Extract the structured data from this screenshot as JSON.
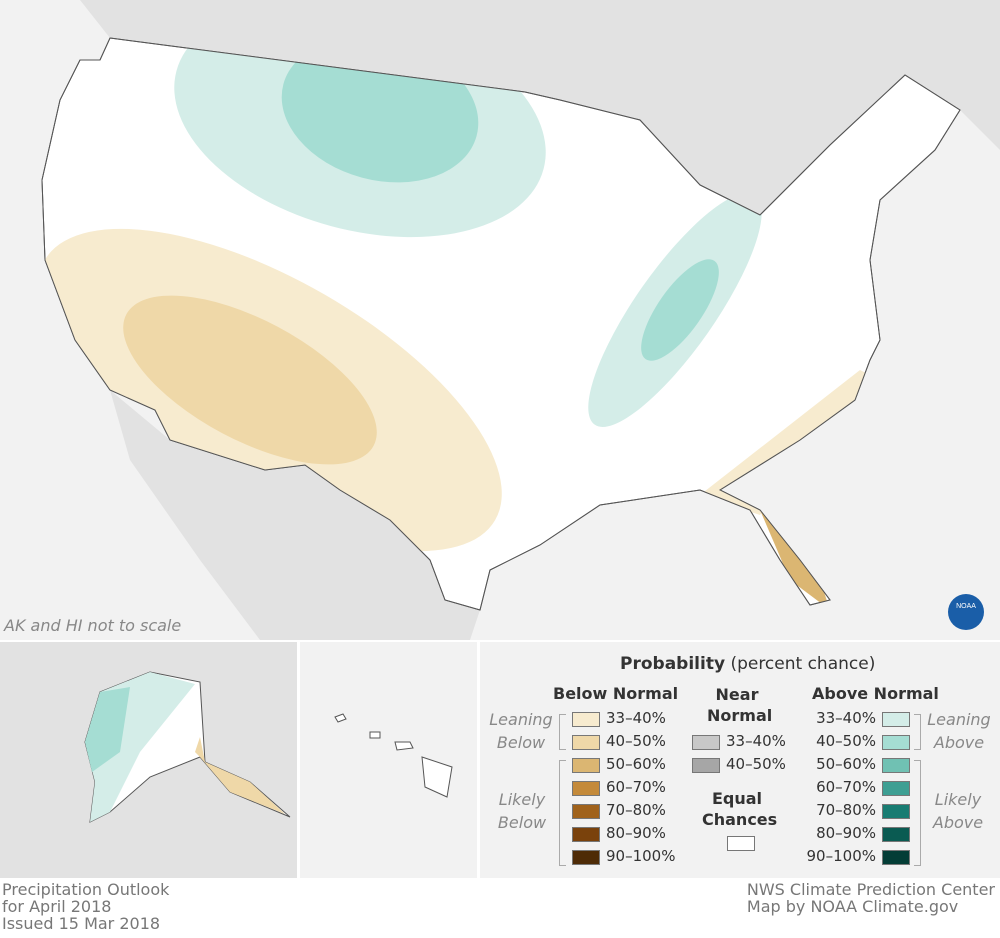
{
  "map": {
    "note": "AK and HI not to scale",
    "logo": "NOAA"
  },
  "legend": {
    "title_bold": "Probability",
    "title_rest": "(percent chance)",
    "below": {
      "heading": "Below Normal",
      "leaning": "Leaning Below",
      "likely": "Likely Below",
      "items": [
        {
          "label": "33–40%",
          "color": "#f7ebcf"
        },
        {
          "label": "40–50%",
          "color": "#efd8a8"
        },
        {
          "label": "50–60%",
          "color": "#dbb672"
        },
        {
          "label": "60–70%",
          "color": "#c48a3a"
        },
        {
          "label": "70–80%",
          "color": "#a0621b"
        },
        {
          "label": "80–90%",
          "color": "#7a420c"
        },
        {
          "label": "90–100%",
          "color": "#4e2b06"
        }
      ]
    },
    "near": {
      "heading": "Near Normal",
      "items": [
        {
          "label": "33–40%",
          "color": "#c8c8c8"
        },
        {
          "label": "40–50%",
          "color": "#a6a6a6"
        }
      ]
    },
    "equal": {
      "heading": "Equal Chances",
      "color": "#ffffff"
    },
    "above": {
      "heading": "Above Normal",
      "leaning": "Leaning Above",
      "likely": "Likely Above",
      "items": [
        {
          "label": "33–40%",
          "color": "#d4ede8"
        },
        {
          "label": "40–50%",
          "color": "#a5ddd3"
        },
        {
          "label": "50–60%",
          "color": "#70c1b3"
        },
        {
          "label": "60–70%",
          "color": "#3e9f93"
        },
        {
          "label": "70–80%",
          "color": "#187c72"
        },
        {
          "label": "80–90%",
          "color": "#0a5b52"
        },
        {
          "label": "90–100%",
          "color": "#043d36"
        }
      ]
    }
  },
  "footer": {
    "left": [
      "Precipitation Outlook",
      "for April 2018",
      "Issued 15 Mar 2018"
    ],
    "right": [
      "NWS Climate Prediction Center",
      "Map by NOAA Climate.gov"
    ]
  }
}
